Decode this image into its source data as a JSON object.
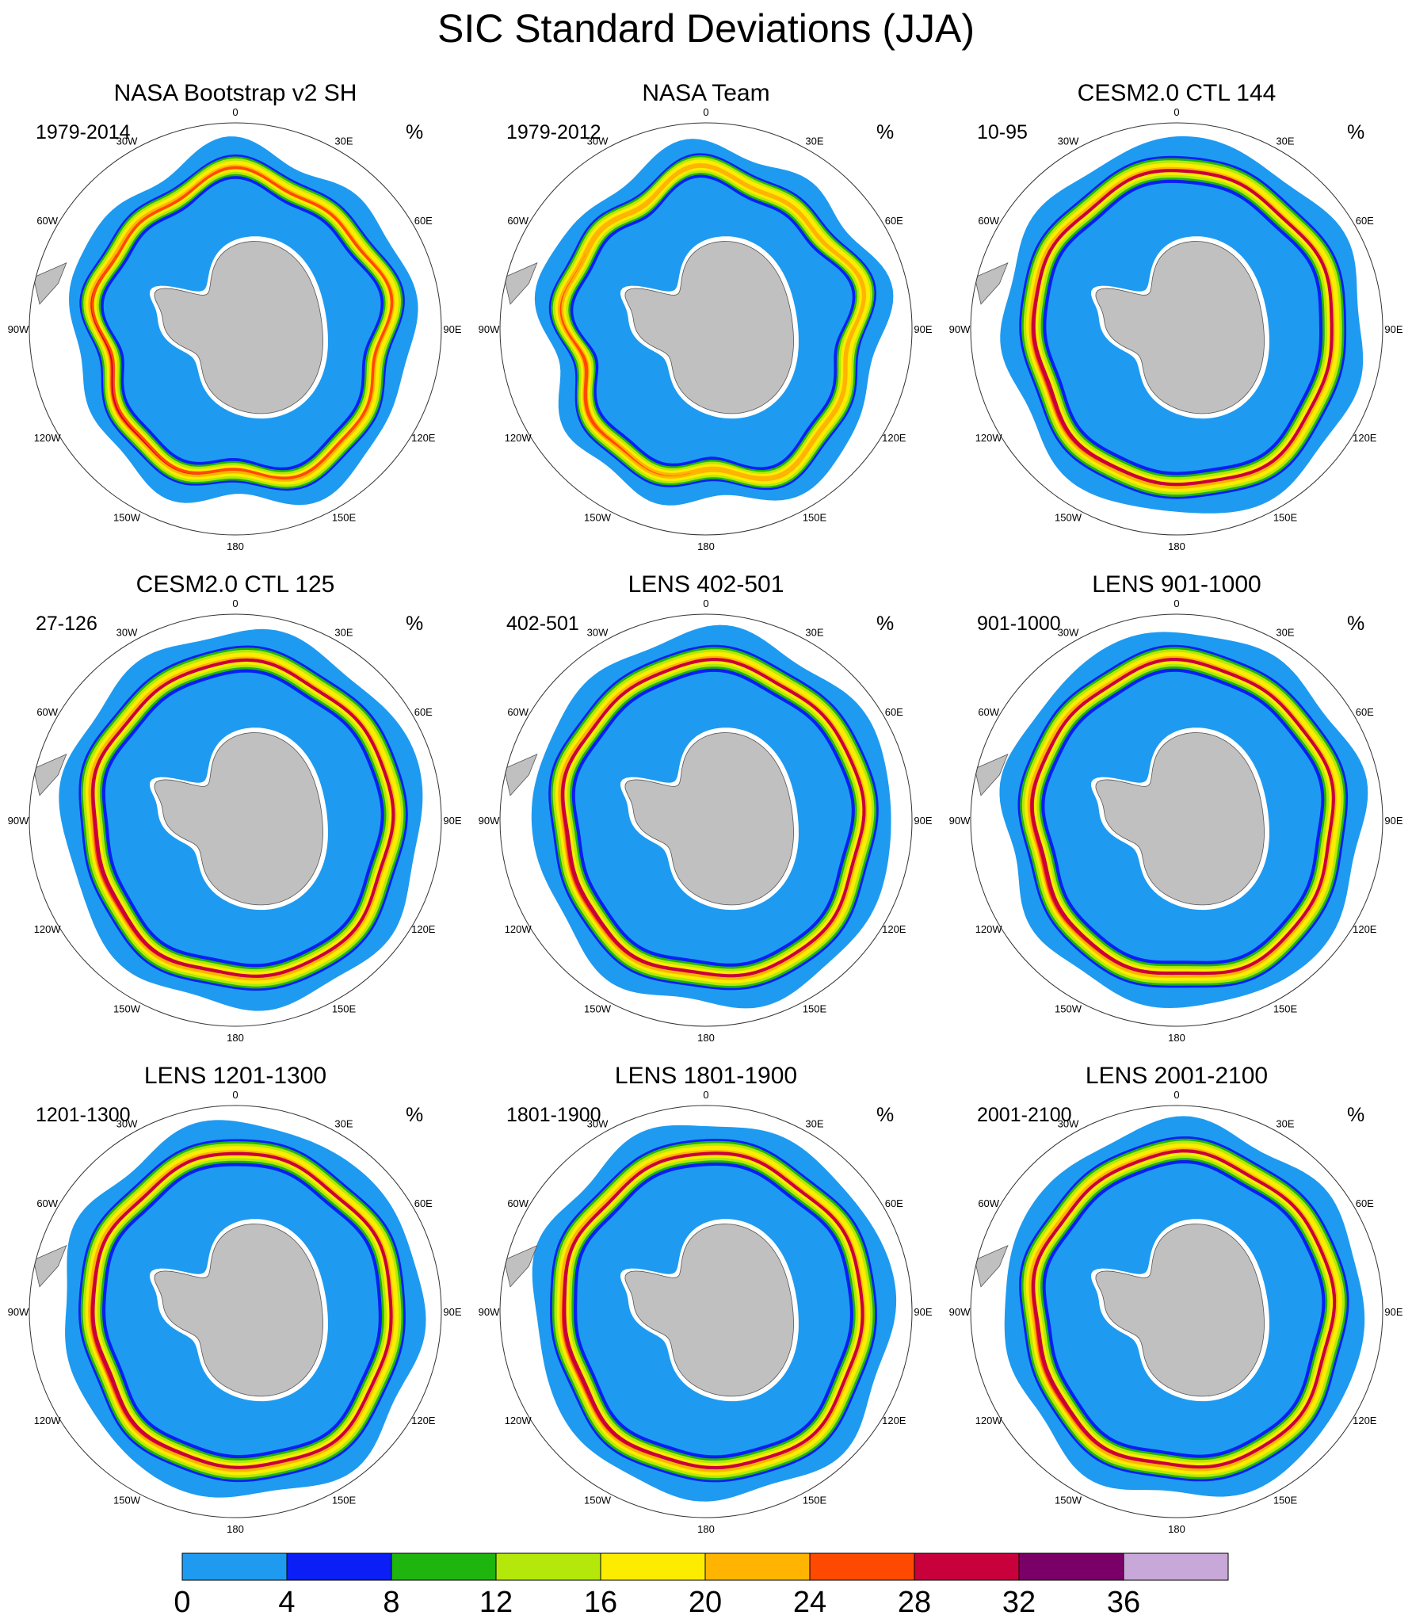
{
  "figure": {
    "title": "SIC Standard Deviations (JJA)",
    "unit": "%",
    "longitude_labels": [
      "0",
      "30E",
      "60E",
      "90E",
      "120E",
      "150E",
      "180",
      "150W",
      "120W",
      "90W",
      "60W",
      "30W"
    ]
  },
  "colors": {
    "land": "#c0c0c0",
    "coast": "#555555"
  },
  "panels": [
    {
      "title": "NASA Bootstrap v2 SH",
      "period": "1979-2014",
      "unit": "%"
    },
    {
      "title": "NASA Team",
      "period": "1979-2012",
      "unit": "%"
    },
    {
      "title": "CESM2.0 CTL 144",
      "period": "10-95",
      "unit": "%"
    },
    {
      "title": "CESM2.0 CTL 125",
      "period": "27-126",
      "unit": "%"
    },
    {
      "title": "LENS 402-501",
      "period": "402-501",
      "unit": "%"
    },
    {
      "title": "LENS 901-1000",
      "period": "901-1000",
      "unit": "%"
    },
    {
      "title": "LENS 1201-1300",
      "period": "1201-1300",
      "unit": "%"
    },
    {
      "title": "LENS 1801-1900",
      "period": "1801-1900",
      "unit": "%"
    },
    {
      "title": "LENS 2001-2100",
      "period": "2001-2100",
      "unit": "%"
    }
  ],
  "colorbar": {
    "labels": [
      "0",
      "4",
      "8",
      "12",
      "16",
      "20",
      "24",
      "28",
      "32",
      "36"
    ],
    "colors": [
      "#1e9bf0",
      "#0a1ef5",
      "#1fb50f",
      "#b4e80a",
      "#fcec00",
      "#feb400",
      "#fe4a00",
      "#c8003c",
      "#7a0068",
      "#c8a8d8"
    ]
  }
}
